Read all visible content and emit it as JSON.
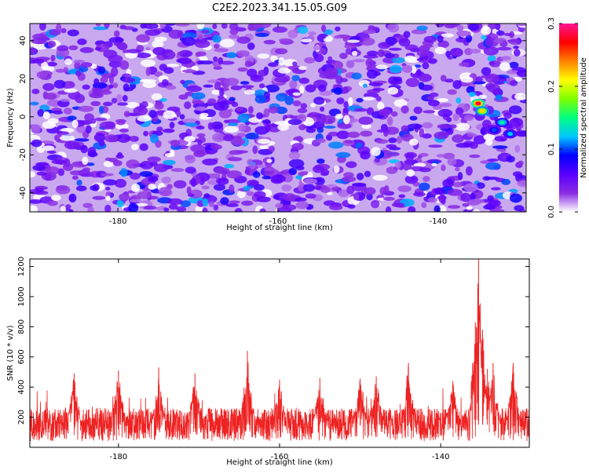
{
  "title": "C2E2.2023.341.15.05.G09",
  "chart_data": [
    {
      "type": "heatmap",
      "xlabel": "Height of straight line (km)",
      "ylabel": "Frequency (Hz)",
      "xlim": [
        -191,
        -129
      ],
      "ylim": [
        -50,
        49
      ],
      "xticks": [
        -180,
        -160,
        -140
      ],
      "yticks": [
        -40,
        -20,
        0,
        20,
        40
      ],
      "colorbar": {
        "label": "Normalized spectral amplitude",
        "range": [
          0.0,
          0.3
        ],
        "ticks": [
          "0.0",
          "0.1",
          "0.2",
          "0.3"
        ],
        "colors": [
          "#ffffff",
          "#8a2be2",
          "#5a00ff",
          "#0000ff",
          "#00c8ff",
          "#00ff80",
          "#7fff00",
          "#ffff00",
          "#ff8000",
          "#ff0000",
          "#ff1493"
        ]
      },
      "hotspots": [
        {
          "x": -135,
          "y": 7,
          "value": 0.28
        },
        {
          "x": -134.5,
          "y": 3,
          "value": 0.22
        },
        {
          "x": -132,
          "y": -3,
          "value": 0.14
        },
        {
          "x": -131,
          "y": -9,
          "value": 0.12
        },
        {
          "x": -133,
          "y": -7,
          "value": 0.1
        }
      ],
      "background_level": 0.04
    },
    {
      "type": "line",
      "xlabel": "Height of straight line (km)",
      "ylabel": "SNR (10 * v/v)",
      "xlim": [
        -191,
        -129
      ],
      "ylim": [
        0,
        1250
      ],
      "xticks": [
        -180,
        -160,
        -140
      ],
      "yticks": [
        200,
        400,
        600,
        800,
        1000,
        1200
      ],
      "color": "#ee2222",
      "baseline": 150,
      "noise_amplitude": 110,
      "peaks": [
        {
          "x": -185.5,
          "y": 490
        },
        {
          "x": -180,
          "y": 510
        },
        {
          "x": -175,
          "y": 530
        },
        {
          "x": -170.5,
          "y": 490
        },
        {
          "x": -164,
          "y": 640
        },
        {
          "x": -160,
          "y": 450
        },
        {
          "x": -155,
          "y": 460
        },
        {
          "x": -150,
          "y": 455
        },
        {
          "x": -148,
          "y": 470
        },
        {
          "x": -144,
          "y": 560
        },
        {
          "x": -138.5,
          "y": 440
        },
        {
          "x": -135.3,
          "y": 1250
        },
        {
          "x": -135.7,
          "y": 830
        },
        {
          "x": -134.8,
          "y": 780
        },
        {
          "x": -134.2,
          "y": 520
        },
        {
          "x": -133.5,
          "y": 560
        },
        {
          "x": -131,
          "y": 560
        }
      ]
    }
  ]
}
